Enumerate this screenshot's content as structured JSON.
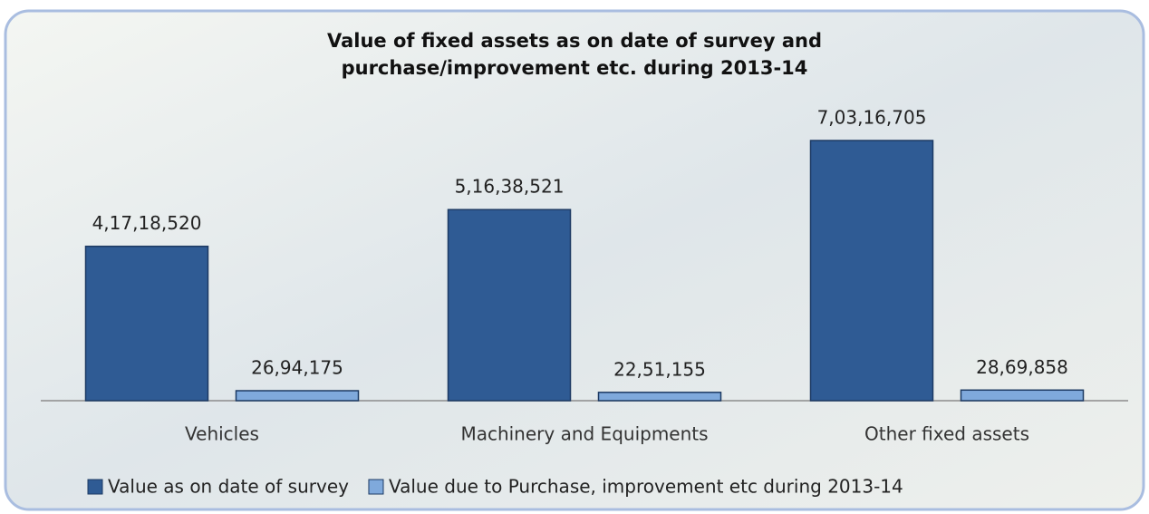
{
  "chart_data": {
    "type": "bar",
    "title": "Value of fixed assets as on date of survey and purchase/improvement etc. during 2013-14",
    "categories": [
      "Vehicles",
      "Machinery and Equipments",
      "Other fixed assets"
    ],
    "series": [
      {
        "name": "Value as on date of survey",
        "color": "#2f5b94",
        "values": [
          41718520,
          51638521,
          70316705
        ],
        "value_labels": [
          "4,17,18,520",
          "5,16,38,521",
          "7,03,16,705"
        ]
      },
      {
        "name": "Value due to Purchase, improvement etc during 2013-14",
        "color": "#7fa9dc",
        "values": [
          2694175,
          2251155,
          2869858
        ],
        "value_labels": [
          "26,94,175",
          "22,51,155",
          "28,69,858"
        ]
      }
    ],
    "legend": "bottom"
  }
}
